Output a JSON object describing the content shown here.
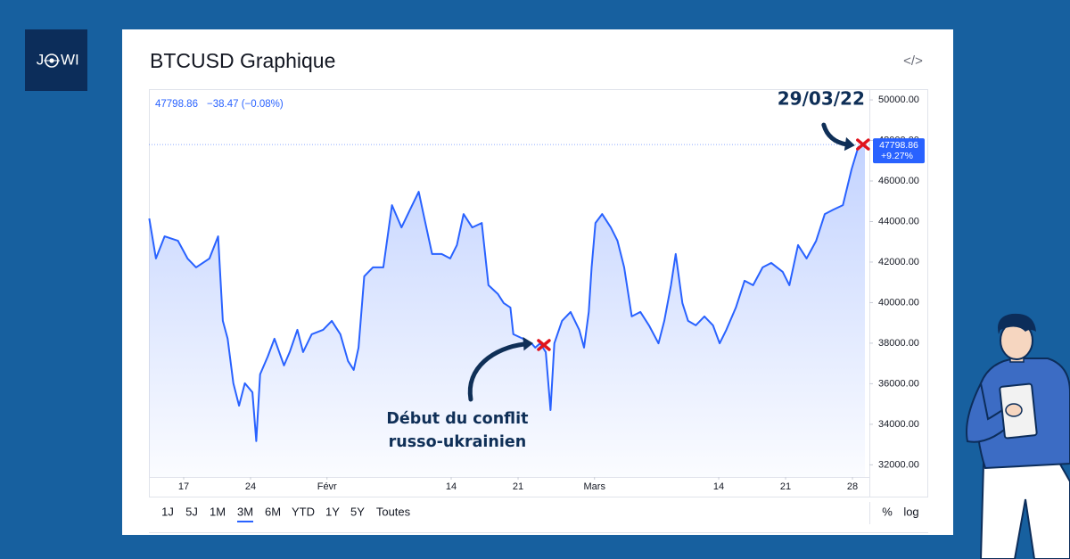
{
  "chart_data": {
    "type": "line",
    "title": "BTCUSD Graphique",
    "embed_icon": "</>",
    "logo": [
      "J",
      "WI"
    ],
    "last_price": 47798.86,
    "change": "−38.47 (−0.08%)",
    "change_pct": "+9.27%",
    "color": "#2962ff",
    "area": true,
    "x": [
      -3.6,
      -2.9,
      -2.0,
      -0.6,
      0.4,
      1.3,
      2.7,
      3.6,
      4.1,
      4.6,
      5.2,
      5.8,
      6.4,
      7.2,
      7.6,
      8.0,
      8.8,
      9.5,
      10.5,
      11.1,
      11.9,
      12.5,
      13.4,
      14.6,
      15.5,
      16.4,
      17.2,
      17.8,
      18.3,
      18.9,
      19.8,
      20.9,
      21.8,
      22.8,
      23.7,
      24.6,
      25.1,
      26.0,
      27.0,
      27.9,
      28.6,
      29.3,
      30.2,
      31.2,
      31.9,
      32.9,
      33.5,
      34.2,
      34.5,
      35.5,
      36.4,
      36.8,
      37.3,
      37.9,
      38.4,
      38.8,
      39.6,
      40.5,
      41.4,
      41.9,
      42.4,
      42.7,
      43.1,
      43.8,
      44.7,
      45.4,
      46.1,
      46.9,
      47.8,
      48.7,
      49.7,
      50.3,
      51.0,
      51.5,
      52.2,
      52.8,
      53.6,
      54.5,
      55.4,
      56.1,
      56.8,
      57.8,
      58.7,
      59.6,
      60.6,
      61.5,
      62.7,
      63.4,
      64.3,
      65.2,
      66.2,
      67.1,
      68.0,
      69.0,
      69.9,
      70.6,
      71.3
    ],
    "values": [
      44150,
      42180,
      43270,
      43050,
      42180,
      41740,
      42180,
      43270,
      39100,
      38220,
      36020,
      34920,
      36020,
      35580,
      33170,
      36460,
      37340,
      38220,
      36900,
      37560,
      38660,
      37560,
      38440,
      38660,
      39100,
      38440,
      37120,
      36680,
      37780,
      41300,
      41740,
      41740,
      44810,
      43710,
      44590,
      45470,
      44370,
      42400,
      42400,
      42180,
      42840,
      44370,
      43710,
      43930,
      40860,
      40420,
      39980,
      39760,
      38440,
      38220,
      37990,
      37780,
      37990,
      37560,
      34700,
      37990,
      39100,
      39540,
      38660,
      37780,
      39540,
      41740,
      43930,
      44370,
      43710,
      43050,
      41740,
      39320,
      39540,
      38880,
      37990,
      39100,
      40860,
      42400,
      39980,
      39100,
      38880,
      39320,
      38880,
      37990,
      38660,
      39760,
      41080,
      40860,
      41740,
      41960,
      41520,
      40860,
      42840,
      42180,
      43050,
      44370,
      44590,
      44810,
      46570,
      47670,
      47798.86
    ],
    "xlim": [
      -3.64,
      71.77
    ],
    "xticks": [
      {
        "value": 0,
        "label": "17"
      },
      {
        "value": 7,
        "label": "24"
      },
      {
        "value": 15,
        "label": "Févr"
      },
      {
        "value": 28,
        "label": "14"
      },
      {
        "value": 35,
        "label": "21"
      },
      {
        "value": 43,
        "label": "Mars"
      },
      {
        "value": 56,
        "label": "14"
      },
      {
        "value": 63,
        "label": "21"
      },
      {
        "value": 70,
        "label": "28"
      }
    ],
    "ylim": [
      31400,
      50530
    ],
    "yticks": [
      {
        "value": 32000,
        "label": "32000.00"
      },
      {
        "value": 34000,
        "label": "34000.00"
      },
      {
        "value": 36000,
        "label": "36000.00"
      },
      {
        "value": 38000,
        "label": "38000.00"
      },
      {
        "value": 40000,
        "label": "40000.00"
      },
      {
        "value": 42000,
        "label": "42000.00"
      },
      {
        "value": 44000,
        "label": "44000.00"
      },
      {
        "value": 46000,
        "label": "46000.00"
      },
      {
        "value": 48000,
        "label": "48000.00"
      },
      {
        "value": 50000,
        "label": "50000.00"
      }
    ],
    "log_scale": false,
    "grid": false,
    "annotations": [
      {
        "text": [
          "Début du conflit",
          "russo-ukrainien"
        ],
        "x": 37.7,
        "y": 37910
      },
      {
        "text": [
          "29/03/22"
        ],
        "x": 71.1,
        "y": 47800
      }
    ],
    "ranges": [
      "1J",
      "5J",
      "1M",
      "3M",
      "6M",
      "YTD",
      "1Y",
      "5Y",
      "Toutes"
    ],
    "active_range": 3,
    "scale_buttons": [
      "%",
      "log"
    ]
  }
}
